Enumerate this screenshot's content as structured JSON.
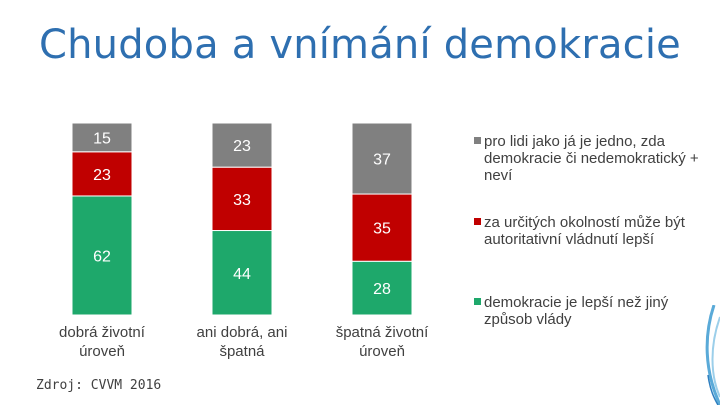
{
  "title": "Chudoba a vnímání demokracie",
  "source": "Zdroj: CVVM 2016",
  "colors": {
    "title": "#2e6fb0",
    "gray": "#808080",
    "red": "#c00000",
    "green": "#1ea86b"
  },
  "chart_data": {
    "type": "bar",
    "stacked": true,
    "percent": true,
    "title": "Chudoba a vnímání demokracie",
    "categories": [
      "dobrá životní úroveň",
      "ani dobrá, ani špatná",
      "špatná životní úroveň"
    ],
    "series": [
      {
        "name": "demokracie je lepší než jiný způsob vlády",
        "color": "#1ea86b",
        "values": [
          62,
          44,
          28
        ]
      },
      {
        "name": "za určitých okolností může být autoritativní vládnutí lepší",
        "color": "#c00000",
        "values": [
          23,
          33,
          35
        ]
      },
      {
        "name": "pro lidi jako já je jedno, zda demokracie či nedemokratický + neví",
        "color": "#808080",
        "values": [
          15,
          23,
          37
        ]
      }
    ],
    "legend_position": "right",
    "grid": false,
    "data_labels": true
  },
  "legend": [
    {
      "label": "pro lidi jako já je jedno, zda demokracie či nedemokratický + neví",
      "color": "#808080"
    },
    {
      "label": "za určitých okolností může být autoritativní vládnutí lepší",
      "color": "#c00000"
    },
    {
      "label": "demokracie je lepší než jiný způsob vlády",
      "color": "#1ea86b"
    }
  ]
}
